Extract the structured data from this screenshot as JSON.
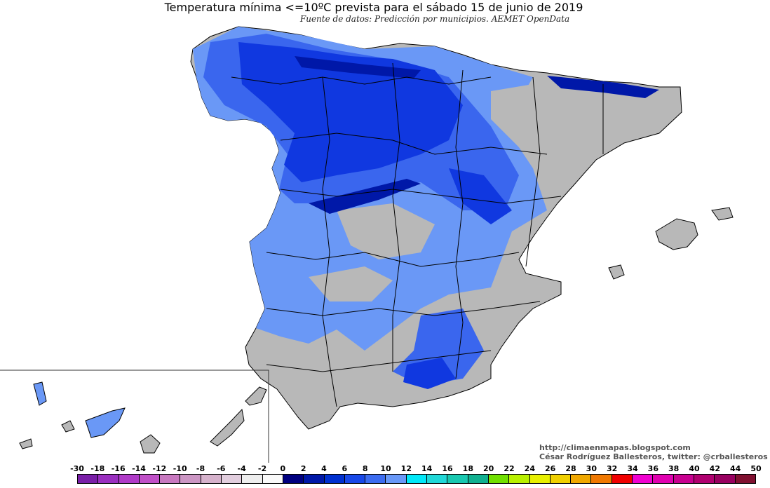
{
  "title": "Temperatura mínima <=10ºC prevista para el sábado 15 de junio de 2019",
  "subtitle": "Fuente de datos: Predicción por municipios. AEMET OpenData",
  "credits": {
    "url": "http://climaenmapas.blogspot.com",
    "author": "César Rodríguez Ballesteros, twitter: @crballesteros"
  },
  "legend": {
    "labels": [
      "-30",
      "-18",
      "-16",
      "-14",
      "-12",
      "-10",
      "-8",
      "-6",
      "-4",
      "-2",
      "0",
      "2",
      "4",
      "6",
      "8",
      "10",
      "12",
      "14",
      "16",
      "18",
      "20",
      "22",
      "24",
      "26",
      "28",
      "30",
      "32",
      "34",
      "36",
      "38",
      "40",
      "42",
      "44",
      "50"
    ],
    "colors": [
      "#7a1fa8",
      "#9a2fc0",
      "#b03ac8",
      "#c050c8",
      "#c878c0",
      "#cc96c4",
      "#d6b2cc",
      "#e2cede",
      "#eeeeee",
      "#fafafa",
      "#000080",
      "#0018a8",
      "#0030d0",
      "#1848e8",
      "#3c6cf0",
      "#6898f8",
      "#00e8f8",
      "#20d8d8",
      "#18c8b0",
      "#10b090",
      "#70e000",
      "#b8f000",
      "#e8f000",
      "#f0d000",
      "#f0a800",
      "#f07800",
      "#f00000",
      "#f000d0",
      "#e000b0",
      "#c80090",
      "#b00070",
      "#980060",
      "#801030"
    ]
  },
  "map_colors": {
    "warm_land": "#b8b8b8",
    "light_blue": "#6a98f6",
    "mid_blue": "#3a66ee",
    "deep_blue": "#1038e0",
    "darkest_blue": "#0018a8",
    "border": "#000000"
  }
}
